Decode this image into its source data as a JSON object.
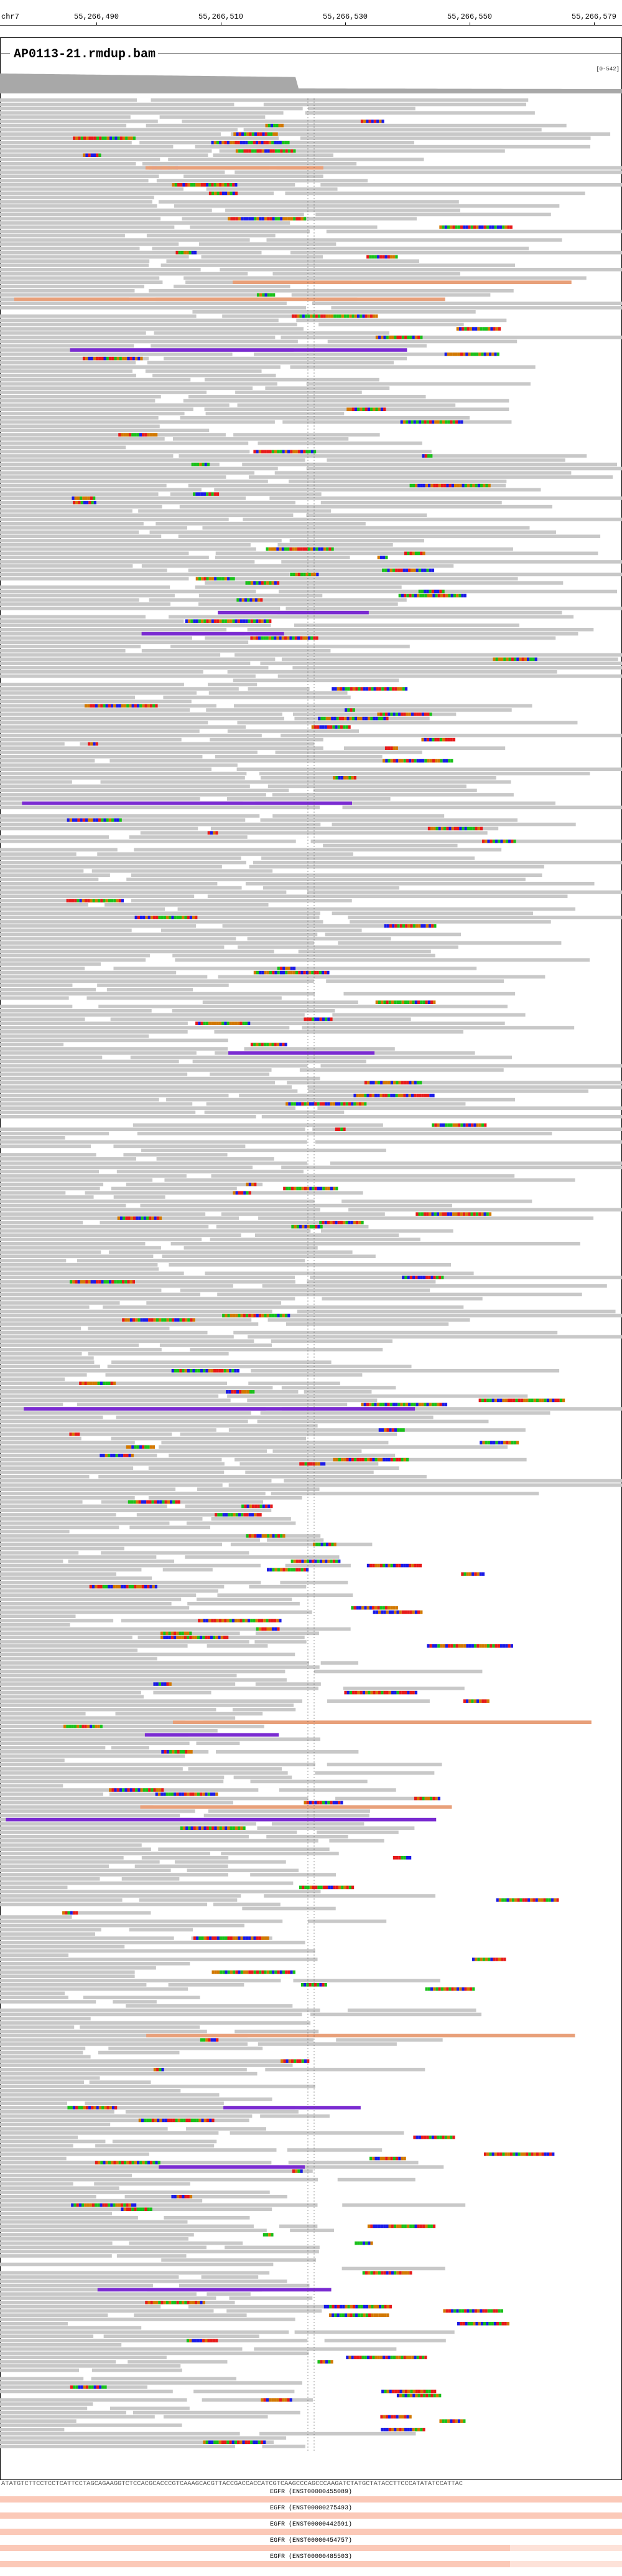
{
  "ruler": {
    "chromosome": "chr7",
    "positions": [
      "55,266,490",
      "55,266,510",
      "55,266,530",
      "55,266,550",
      "55,266,579"
    ]
  },
  "track": {
    "title": "AP0113-21.rmdup.bam",
    "coverage_scale": "[0-542]"
  },
  "reference": {
    "sequence": "ATATGTCTTCCTCCTCATTCCTAGCAGAAGGTCTCCACGCACCCGTCAAAGCACGTTACCGACCACCATCGTCAAGCCCAGCCCAAGATCTATGCTATACCTTCCCATATATCCATTAC"
  },
  "genes": [
    {
      "label": "EGFR (ENST00000455089)"
    },
    {
      "label": "EGFR (ENST00000275493)"
    },
    {
      "label": "EGFR (ENST00000442591)"
    },
    {
      "label": "EGFR (ENST00000454757)"
    },
    {
      "label": "EGFR (ENST00000485503)"
    }
  ],
  "colors": {
    "read_fill": "#c8c8c8",
    "read_border": "#9a9a9a",
    "base_A": "#19c019",
    "base_C": "#1a1ae6",
    "base_G": "#d27800",
    "base_T": "#e61a1a",
    "insertion": "#7a2bd1",
    "coverage": "#a8a8a8",
    "gene": "#fde2d9"
  },
  "icons": {
    "track_menu": "collapse-line-icon"
  }
}
